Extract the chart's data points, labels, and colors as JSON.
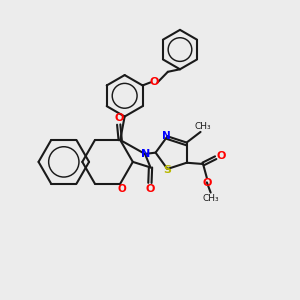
{
  "bg_color": "#ececec",
  "bond_color": "#1a1a1a",
  "bond_width": 1.5,
  "N_color": "#0000ff",
  "O_color": "#ff0000",
  "S_color": "#b8b800",
  "figsize": [
    3.0,
    3.0
  ],
  "dpi": 100,
  "xlim": [
    0,
    10
  ],
  "ylim": [
    0,
    10
  ]
}
